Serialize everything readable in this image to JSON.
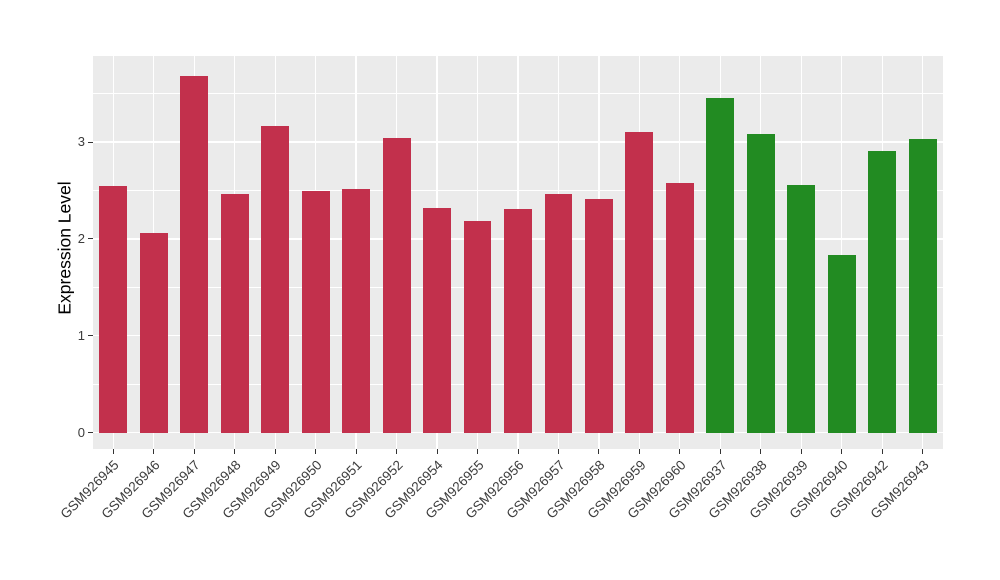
{
  "figure": {
    "background": "#ffffff"
  },
  "chart_data": {
    "type": "bar",
    "title": "",
    "xlabel": "",
    "ylabel": "Expression Level",
    "categories": [
      "GSM926945",
      "GSM926946",
      "GSM926947",
      "GSM926948",
      "GSM926949",
      "GSM926950",
      "GSM926951",
      "GSM926952",
      "GSM926954",
      "GSM926955",
      "GSM926956",
      "GSM926957",
      "GSM926958",
      "GSM926959",
      "GSM926960",
      "GSM926937",
      "GSM926938",
      "GSM926939",
      "GSM926940",
      "GSM926942",
      "GSM926943"
    ],
    "values": [
      2.55,
      2.06,
      3.68,
      2.46,
      3.17,
      2.5,
      2.52,
      3.04,
      2.32,
      2.19,
      2.31,
      2.46,
      2.41,
      3.1,
      2.58,
      3.46,
      3.08,
      2.56,
      1.83,
      2.91,
      3.03
    ],
    "bar_colors": [
      "#C2304C",
      "#C2304C",
      "#C2304C",
      "#C2304C",
      "#C2304C",
      "#C2304C",
      "#C2304C",
      "#C2304C",
      "#C2304C",
      "#C2304C",
      "#C2304C",
      "#C2304C",
      "#C2304C",
      "#C2304C",
      "#C2304C",
      "#228B22",
      "#228B22",
      "#228B22",
      "#228B22",
      "#228B22",
      "#228B22"
    ],
    "group_colors": {
      "left_group": "#C2304C",
      "right_group": "#228B22"
    },
    "yticks": [
      "0",
      "1",
      "2",
      "3"
    ],
    "ytick_values": [
      0,
      1,
      2,
      3
    ],
    "yticks_minor": [
      0.5,
      1.5,
      2.5,
      3.5
    ],
    "ylim": [
      -0.17,
      3.89
    ],
    "bar_width_fraction": 0.69,
    "legend": false,
    "grid": true,
    "panel_background": "#EBEBEB",
    "grid_color": "#FFFFFF",
    "tick_color": "#333333",
    "axis_text_color": "#3c3c3c"
  }
}
